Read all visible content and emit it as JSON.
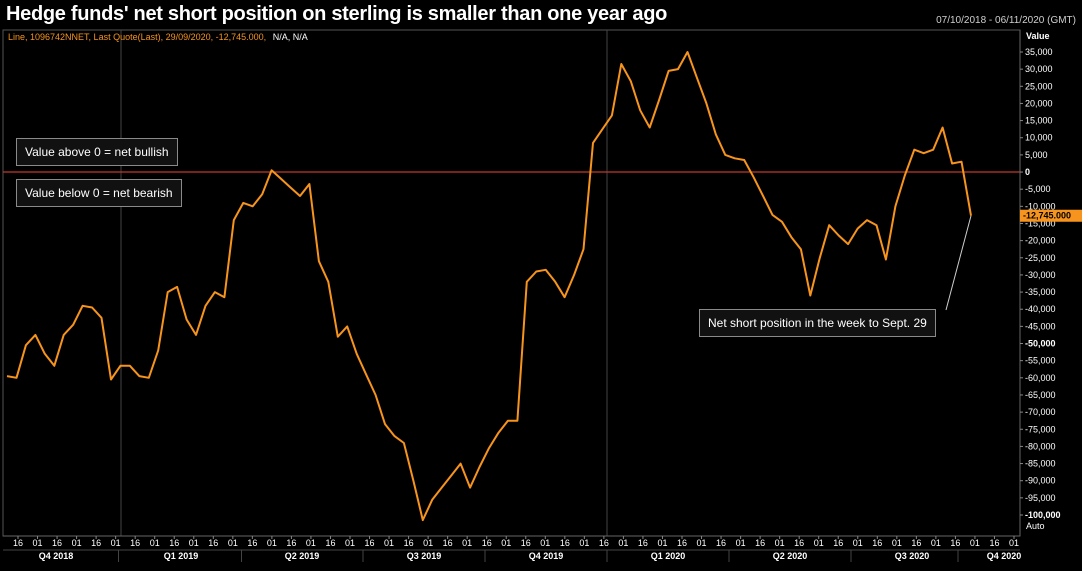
{
  "title": "Hedge funds' net short position on sterling is smaller than one year ago",
  "date_range": "07/10/2018 - 06/11/2020 (GMT)",
  "legend": {
    "prefix": "Line, 1096742NNET, Last Quote(Last), 29/09/2020, -12,745.000,",
    "suffix": "N/A, N/A"
  },
  "annotations": {
    "above": "Value above 0 = net bullish",
    "below": "Value below 0 = net bearish",
    "callout": "Net short position in the week to Sept. 29"
  },
  "colors": {
    "line": "#f7941d",
    "zero_line": "#c0392b",
    "last_tag_bg": "#f7941d",
    "grid": "#333333"
  },
  "chart_data": {
    "type": "line",
    "title": "Hedge funds' net short position on sterling is smaller than one year ago",
    "ylabel": "Value",
    "ylim": [
      -100000,
      35000
    ],
    "y_ticks": [
      35000,
      30000,
      25000,
      20000,
      15000,
      10000,
      5000,
      0,
      -5000,
      -10000,
      -15000,
      -20000,
      -25000,
      -30000,
      -35000,
      -40000,
      -45000,
      -50000,
      -55000,
      -60000,
      -65000,
      -70000,
      -75000,
      -80000,
      -85000,
      -90000,
      -95000,
      -100000
    ],
    "y_tick_labels": [
      "35,000",
      "30,000",
      "25,000",
      "20,000",
      "15,000",
      "10,000",
      "5,000",
      "0",
      "-5,000",
      "-10,000",
      "-15,000",
      "-20,000",
      "-25,000",
      "-30,000",
      "-35,000",
      "-40,000",
      "-45,000",
      "-50,000",
      "-55,000",
      "-60,000",
      "-65,000",
      "-70,000",
      "-75,000",
      "-80,000",
      "-85,000",
      "-90,000",
      "-95,000",
      "-100,000"
    ],
    "y_bold_ticks": [
      "0",
      "-50,000",
      "-100,000"
    ],
    "y_axis_footer": "Auto",
    "last_value_label": "-12,745.000",
    "last_value": -12745,
    "zero_line": 0,
    "x_tick_labels": [
      "16",
      "01",
      "16",
      "01",
      "16",
      "01",
      "16",
      "01",
      "16",
      "01",
      "16",
      "01",
      "16",
      "01",
      "16",
      "01",
      "16",
      "01",
      "16",
      "01",
      "16",
      "01",
      "16",
      "01",
      "16",
      "01",
      "16",
      "01",
      "16",
      "01",
      "16",
      "01",
      "16",
      "01",
      "16",
      "01",
      "16",
      "01",
      "16",
      "01",
      "16",
      "01",
      "16",
      "01",
      "16",
      "01",
      "16",
      "01",
      "16",
      "01",
      "16",
      "01"
    ],
    "quarters": [
      "Q4 2018",
      "Q1 2019",
      "Q2 2019",
      "Q3 2019",
      "Q4 2019",
      "Q1 2020",
      "Q2 2020",
      "Q3 2020",
      "Q4 2020"
    ],
    "series": [
      {
        "name": "1096742NNET",
        "values": [
          -59500,
          -60000,
          -50500,
          -47500,
          -53000,
          -56500,
          -47500,
          -44500,
          -39000,
          -39500,
          -42500,
          -60500,
          -56500,
          -56500,
          -59500,
          -60000,
          -52000,
          -35000,
          -33500,
          -43000,
          -47500,
          -39000,
          -35000,
          -36500,
          -14000,
          -9000,
          -10000,
          -6500,
          500,
          -2000,
          -4500,
          -7000,
          -3500,
          -26000,
          -32000,
          -48000,
          -45000,
          -53000,
          -59000,
          -65000,
          -73500,
          -77000,
          -79000,
          -90000,
          -101500,
          -95500,
          -92000,
          -88500,
          -85000,
          -92000,
          -86000,
          -80500,
          -76000,
          -72500,
          -72500,
          -32000,
          -29000,
          -28500,
          -32000,
          -36500,
          -30000,
          -22500,
          8500,
          12500,
          16500,
          31500,
          26500,
          18000,
          13000,
          21000,
          29500,
          30000,
          35000,
          27500,
          20000,
          11000,
          5000,
          4000,
          3500,
          -1500,
          -7000,
          -12500,
          -14500,
          -19000,
          -22500,
          -36000,
          -25000,
          -15500,
          -18500,
          -21000,
          -16500,
          -14000,
          -15500,
          -25500,
          -10000,
          -1000,
          6500,
          5500,
          6500,
          13000,
          2500,
          3000,
          -12745
        ]
      }
    ]
  }
}
